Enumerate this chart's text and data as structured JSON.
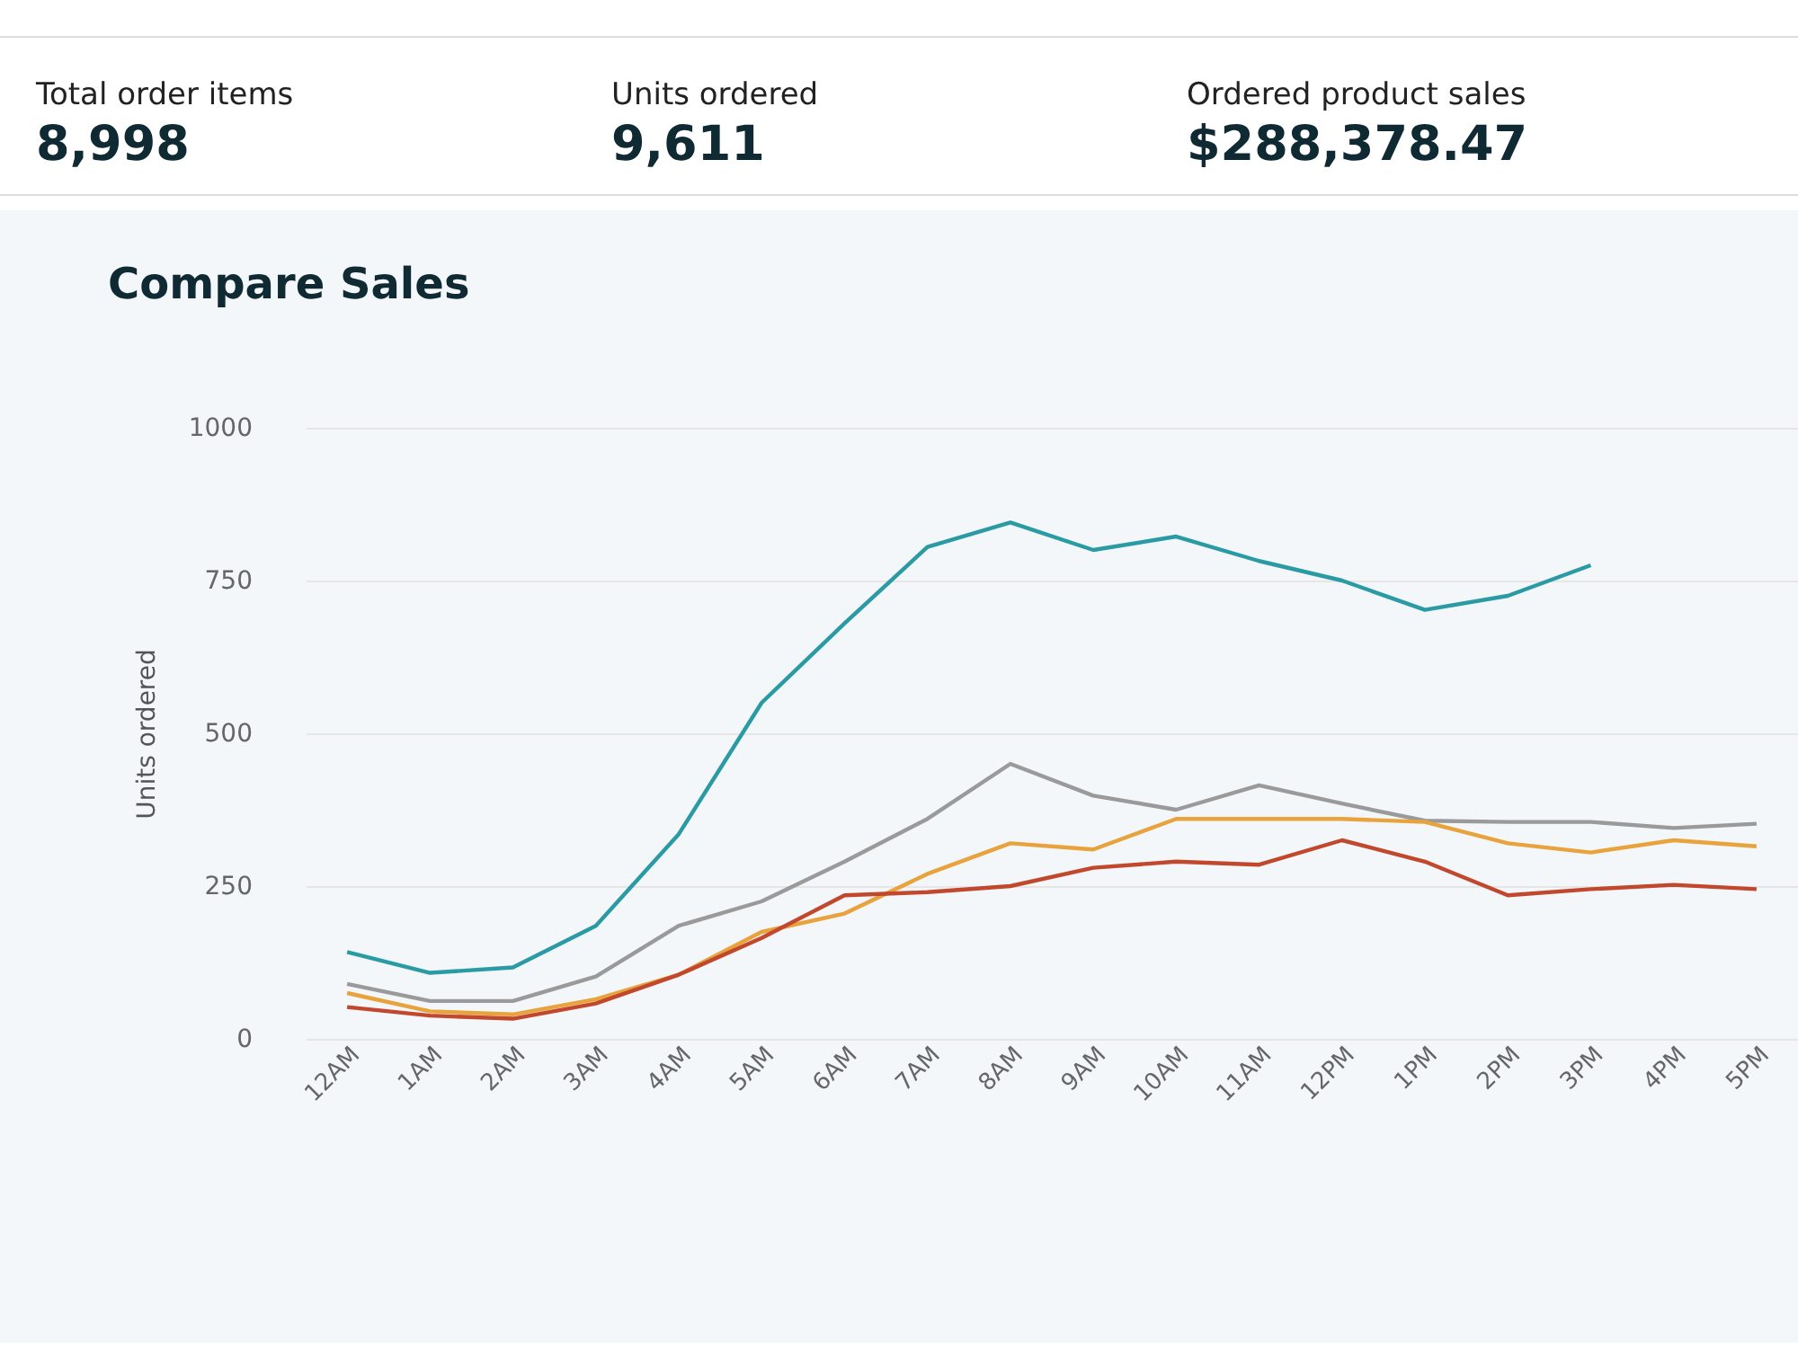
{
  "chart_data": [
    {
      "type": "other",
      "annotations": [
        "Total order items",
        "8,998",
        "Units ordered",
        "9,611",
        "Ordered product sales",
        "$288,378.47"
      ]
    },
    {
      "type": "line",
      "title": "Compare Sales",
      "ylabel": "Units ordered",
      "categories": [
        "12AM",
        "1AM",
        "2AM",
        "3AM",
        "4AM",
        "5AM",
        "6AM",
        "7AM",
        "8AM",
        "9AM",
        "10AM",
        "11AM",
        "12PM",
        "1PM",
        "2PM",
        "3PM",
        "4PM",
        "5PM"
      ],
      "series": [
        {
          "color": "#2a9aa5",
          "values": [
            142,
            108,
            117,
            185,
            335,
            550,
            680,
            805,
            845,
            800,
            822,
            782,
            750,
            702,
            725,
            775,
            null,
            null
          ]
        },
        {
          "color": "#9a9a9a",
          "values": [
            90,
            62,
            62,
            102,
            185,
            225,
            290,
            360,
            450,
            398,
            375,
            415,
            385,
            357,
            355,
            355,
            345,
            352
          ]
        },
        {
          "color": "#e8a33d",
          "values": [
            75,
            45,
            40,
            65,
            105,
            175,
            205,
            270,
            320,
            310,
            360,
            360,
            360,
            355,
            320,
            305,
            325,
            315
          ]
        },
        {
          "color": "#c2482d",
          "values": [
            52,
            38,
            33,
            58,
            105,
            165,
            235,
            240,
            250,
            280,
            290,
            285,
            325,
            290,
            235,
            245,
            252,
            245
          ]
        }
      ],
      "ylim": [
        0,
        1000
      ],
      "yticks": [
        0,
        250,
        500,
        750,
        1000
      ],
      "grid": "y",
      "legend": false,
      "marker": "none",
      "line_style": "solid"
    }
  ]
}
